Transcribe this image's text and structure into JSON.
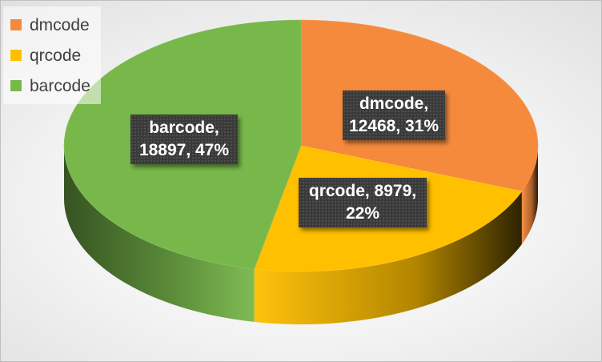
{
  "chart_data": {
    "type": "pie",
    "title": "",
    "categories": [
      "dmcode",
      "qrcode",
      "barcode"
    ],
    "values": [
      12468,
      8979,
      18897
    ],
    "percentages": [
      "31%",
      "22%",
      "47%"
    ],
    "colors": [
      "#f58a3c",
      "#ffc000",
      "#78b84b"
    ],
    "legend_position": "top-left",
    "labels": [
      {
        "line1": "dmcode,",
        "line2": "12468, 31%"
      },
      {
        "line1": "qrcode, 8979,",
        "line2": "22%"
      },
      {
        "line1": "barcode,",
        "line2": "18897, 47%"
      }
    ]
  }
}
